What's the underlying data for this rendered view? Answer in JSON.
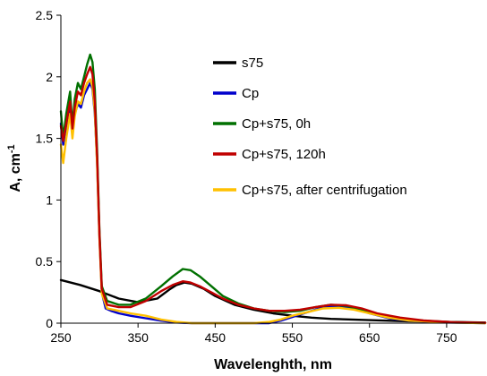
{
  "chart_data": {
    "type": "line",
    "title": "",
    "xlabel": "Wavelenghth, nm",
    "ylabel_main": "A, cm",
    "ylabel_sup": "-1",
    "xlim": [
      250,
      800
    ],
    "ylim": [
      0,
      2.5
    ],
    "xticks": [
      250,
      350,
      450,
      550,
      650,
      750
    ],
    "yticks": [
      0,
      0.5,
      1,
      1.5,
      2,
      2.5
    ],
    "ytick_labels": [
      "0",
      "0.5",
      "1",
      "1.5",
      "2",
      "2.5"
    ],
    "grid": false,
    "legend_position": "center-right",
    "series": [
      {
        "name": "s75",
        "color": "#000000",
        "points": [
          [
            250,
            0.35
          ],
          [
            275,
            0.31
          ],
          [
            300,
            0.26
          ],
          [
            325,
            0.2
          ],
          [
            350,
            0.17
          ],
          [
            375,
            0.2
          ],
          [
            390,
            0.27
          ],
          [
            400,
            0.31
          ],
          [
            410,
            0.33
          ],
          [
            420,
            0.32
          ],
          [
            435,
            0.28
          ],
          [
            450,
            0.22
          ],
          [
            475,
            0.15
          ],
          [
            500,
            0.11
          ],
          [
            525,
            0.08
          ],
          [
            550,
            0.06
          ],
          [
            575,
            0.045
          ],
          [
            600,
            0.035
          ],
          [
            650,
            0.025
          ],
          [
            700,
            0.015
          ],
          [
            750,
            0.01
          ],
          [
            800,
            0.005
          ]
        ]
      },
      {
        "name": "Cp",
        "color": "#0000cc",
        "points": [
          [
            250,
            1.62
          ],
          [
            253,
            1.45
          ],
          [
            257,
            1.6
          ],
          [
            262,
            1.78
          ],
          [
            265,
            1.55
          ],
          [
            268,
            1.7
          ],
          [
            272,
            1.78
          ],
          [
            276,
            1.75
          ],
          [
            280,
            1.85
          ],
          [
            284,
            1.9
          ],
          [
            288,
            1.95
          ],
          [
            291,
            1.9
          ],
          [
            294,
            1.7
          ],
          [
            297,
            1.3
          ],
          [
            300,
            0.7
          ],
          [
            303,
            0.25
          ],
          [
            308,
            0.12
          ],
          [
            315,
            0.1
          ],
          [
            325,
            0.08
          ],
          [
            340,
            0.06
          ],
          [
            360,
            0.04
          ],
          [
            380,
            0.02
          ],
          [
            400,
            0.005
          ],
          [
            420,
            0.0
          ],
          [
            500,
            0.0
          ],
          [
            520,
            0.0
          ],
          [
            535,
            0.02
          ],
          [
            550,
            0.05
          ],
          [
            570,
            0.09
          ],
          [
            590,
            0.13
          ],
          [
            610,
            0.14
          ],
          [
            630,
            0.12
          ],
          [
            650,
            0.08
          ],
          [
            675,
            0.04
          ],
          [
            700,
            0.02
          ],
          [
            750,
            0.005
          ],
          [
            800,
            0.0
          ]
        ]
      },
      {
        "name": "Cp+s75, 0h",
        "color": "#007000",
        "points": [
          [
            250,
            1.72
          ],
          [
            253,
            1.5
          ],
          [
            257,
            1.7
          ],
          [
            262,
            1.88
          ],
          [
            265,
            1.6
          ],
          [
            268,
            1.82
          ],
          [
            272,
            1.95
          ],
          [
            276,
            1.9
          ],
          [
            280,
            2.0
          ],
          [
            284,
            2.1
          ],
          [
            288,
            2.18
          ],
          [
            291,
            2.12
          ],
          [
            294,
            1.9
          ],
          [
            297,
            1.4
          ],
          [
            300,
            0.75
          ],
          [
            303,
            0.3
          ],
          [
            310,
            0.18
          ],
          [
            325,
            0.15
          ],
          [
            340,
            0.15
          ],
          [
            360,
            0.2
          ],
          [
            380,
            0.3
          ],
          [
            395,
            0.38
          ],
          [
            408,
            0.44
          ],
          [
            418,
            0.43
          ],
          [
            430,
            0.38
          ],
          [
            445,
            0.3
          ],
          [
            460,
            0.22
          ],
          [
            480,
            0.16
          ],
          [
            500,
            0.12
          ],
          [
            520,
            0.1
          ],
          [
            540,
            0.09
          ],
          [
            560,
            0.1
          ],
          [
            580,
            0.13
          ],
          [
            600,
            0.15
          ],
          [
            620,
            0.14
          ],
          [
            640,
            0.11
          ],
          [
            660,
            0.07
          ],
          [
            690,
            0.04
          ],
          [
            720,
            0.02
          ],
          [
            760,
            0.008
          ],
          [
            800,
            0.003
          ]
        ]
      },
      {
        "name": "Cp+s75, 120h",
        "color": "#c00000",
        "points": [
          [
            250,
            1.6
          ],
          [
            253,
            1.48
          ],
          [
            257,
            1.62
          ],
          [
            262,
            1.8
          ],
          [
            265,
            1.58
          ],
          [
            268,
            1.75
          ],
          [
            272,
            1.88
          ],
          [
            276,
            1.85
          ],
          [
            280,
            1.95
          ],
          [
            284,
            2.02
          ],
          [
            288,
            2.08
          ],
          [
            291,
            2.02
          ],
          [
            294,
            1.8
          ],
          [
            297,
            1.35
          ],
          [
            300,
            0.72
          ],
          [
            303,
            0.28
          ],
          [
            310,
            0.15
          ],
          [
            325,
            0.13
          ],
          [
            340,
            0.13
          ],
          [
            360,
            0.18
          ],
          [
            380,
            0.26
          ],
          [
            395,
            0.31
          ],
          [
            408,
            0.34
          ],
          [
            418,
            0.33
          ],
          [
            430,
            0.3
          ],
          [
            445,
            0.25
          ],
          [
            460,
            0.2
          ],
          [
            480,
            0.15
          ],
          [
            500,
            0.12
          ],
          [
            520,
            0.1
          ],
          [
            540,
            0.1
          ],
          [
            560,
            0.11
          ],
          [
            580,
            0.13
          ],
          [
            600,
            0.15
          ],
          [
            620,
            0.145
          ],
          [
            640,
            0.12
          ],
          [
            660,
            0.08
          ],
          [
            690,
            0.045
          ],
          [
            720,
            0.022
          ],
          [
            760,
            0.008
          ],
          [
            800,
            0.003
          ]
        ]
      },
      {
        "name": "Cp+s75, after centrifugation",
        "color": "#ffc000",
        "points": [
          [
            250,
            1.45
          ],
          [
            253,
            1.3
          ],
          [
            257,
            1.5
          ],
          [
            262,
            1.7
          ],
          [
            265,
            1.5
          ],
          [
            268,
            1.68
          ],
          [
            272,
            1.8
          ],
          [
            276,
            1.78
          ],
          [
            280,
            1.88
          ],
          [
            284,
            1.95
          ],
          [
            288,
            1.98
          ],
          [
            291,
            1.92
          ],
          [
            294,
            1.72
          ],
          [
            297,
            1.28
          ],
          [
            300,
            0.68
          ],
          [
            303,
            0.24
          ],
          [
            310,
            0.12
          ],
          [
            325,
            0.1
          ],
          [
            340,
            0.08
          ],
          [
            360,
            0.06
          ],
          [
            380,
            0.03
          ],
          [
            400,
            0.01
          ],
          [
            420,
            0.0
          ],
          [
            500,
            0.0
          ],
          [
            520,
            0.01
          ],
          [
            535,
            0.03
          ],
          [
            550,
            0.06
          ],
          [
            570,
            0.09
          ],
          [
            590,
            0.12
          ],
          [
            610,
            0.125
          ],
          [
            630,
            0.11
          ],
          [
            650,
            0.08
          ],
          [
            675,
            0.045
          ],
          [
            700,
            0.022
          ],
          [
            750,
            0.006
          ],
          [
            800,
            0.0
          ]
        ]
      }
    ]
  }
}
